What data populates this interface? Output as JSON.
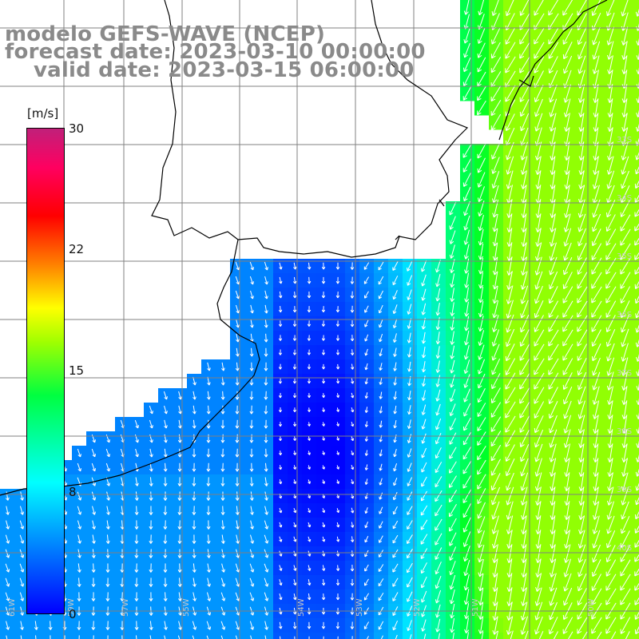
{
  "title": {
    "line1": "modelo GEFS-WAVE (NCEP)",
    "line2": "forecast date: 2023-03-10 00:00:00",
    "line3": "valid date: 2023-03-15 06:00:00"
  },
  "colorbar": {
    "unit": "[m/s]",
    "ticks": [
      "30",
      "22",
      "15",
      "8",
      "0"
    ],
    "tick_values": [
      30,
      22,
      15,
      8,
      0
    ],
    "colors": [
      "#0000ff",
      "#00a0ff",
      "#00ffff",
      "#00ff40",
      "#a0ff00",
      "#ffff00",
      "#ff8000",
      "#ff0000",
      "#c0207a"
    ]
  },
  "map": {
    "variable": "wind speed and direction",
    "lon_labels": [
      "61W",
      "59W",
      "57W",
      "55W",
      "54W",
      "53W",
      "52W",
      "51W",
      "50W"
    ],
    "lat_labels": [
      "33S",
      "34S",
      "35S",
      "36S",
      "37S",
      "38S",
      "39S",
      "40S"
    ],
    "grid": true,
    "arrow_color": "#ffffff",
    "land_color": "#ffffff",
    "coast_color": "#000000"
  }
}
